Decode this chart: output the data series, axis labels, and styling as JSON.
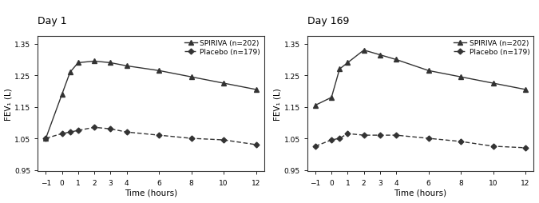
{
  "day1": {
    "title": "Day 1",
    "spiriva_x": [
      -1,
      0,
      0.5,
      1,
      2,
      3,
      4,
      6,
      8,
      10,
      12
    ],
    "spiriva_y": [
      1.05,
      1.19,
      1.26,
      1.29,
      1.295,
      1.29,
      1.28,
      1.265,
      1.245,
      1.225,
      1.205
    ],
    "placebo_x": [
      -1,
      0,
      0.5,
      1,
      2,
      3,
      4,
      6,
      8,
      10,
      12
    ],
    "placebo_y": [
      1.05,
      1.065,
      1.07,
      1.075,
      1.085,
      1.08,
      1.07,
      1.06,
      1.05,
      1.045,
      1.03
    ]
  },
  "day169": {
    "title": "Day 169",
    "spiriva_x": [
      -1,
      0,
      0.5,
      1,
      2,
      3,
      4,
      6,
      8,
      10,
      12
    ],
    "spiriva_y": [
      1.155,
      1.18,
      1.27,
      1.29,
      1.33,
      1.315,
      1.3,
      1.265,
      1.245,
      1.225,
      1.205
    ],
    "placebo_x": [
      -1,
      0,
      0.5,
      1,
      2,
      3,
      4,
      6,
      8,
      10,
      12
    ],
    "placebo_y": [
      1.025,
      1.045,
      1.05,
      1.065,
      1.06,
      1.06,
      1.06,
      1.05,
      1.04,
      1.025,
      1.02
    ]
  },
  "ylim": [
    0.945,
    1.375
  ],
  "yticks": [
    0.95,
    1.05,
    1.15,
    1.25,
    1.35
  ],
  "xticks": [
    -1,
    0,
    1,
    2,
    3,
    4,
    6,
    8,
    10,
    12
  ],
  "xlabel": "Time (hours)",
  "ylabel": "FEV₁ (L)",
  "spiriva_label": "SPIRIVA (n=202)",
  "placebo_label": "Placebo (n=179)",
  "line_color": "#333333",
  "marker_spiriva": "^",
  "marker_placebo": "D",
  "legend_fontsize": 6.5,
  "tick_fontsize": 6.5,
  "label_fontsize": 7.5,
  "title_fontsize": 9
}
